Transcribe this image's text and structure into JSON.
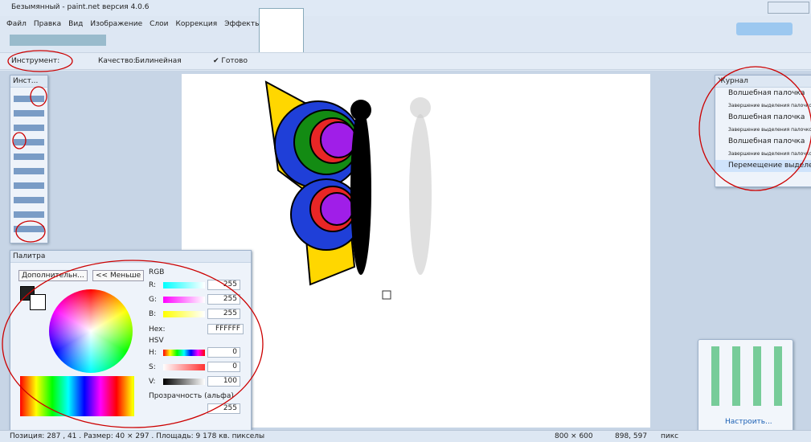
{
  "window": {
    "title": "Безымянный - paint.net версия 4.0.6"
  },
  "menu": [
    "Файл",
    "Правка",
    "Вид",
    "Изображение",
    "Слои",
    "Коррекция",
    "Эффекты"
  ],
  "toolbar": {
    "tool_label": "Инструмент:",
    "quality_label": "Качество:",
    "quality_value": "Билинейная",
    "finish": "Готово"
  },
  "tools": {
    "title": "Инст..."
  },
  "history": {
    "title": "Журнал",
    "items": [
      "Волшебная палочка",
      "Завершение выделения палочкой",
      "Волшебная палочка",
      "Завершение выделения палочкой",
      "Волшебная палочка",
      "Завершение выделения палочкой",
      "Перемещение выделенной област"
    ]
  },
  "palette": {
    "title": "Палитра",
    "mode": "Дополнительн...",
    "less": "<< Меньше",
    "rgb": "RGB",
    "r_label": "R:",
    "r": "255",
    "g_label": "G:",
    "g": "255",
    "b_label": "B:",
    "b": "255",
    "hex_label": "Hex:",
    "hex": "FFFFFF",
    "hsv": "HSV",
    "h_label": "H:",
    "h": "0",
    "s_label": "S:",
    "s": "0",
    "v_label": "V:",
    "v": "100",
    "alpha_label": "Прозрачность (альфа)",
    "alpha": "255"
  },
  "tray": {
    "customize": "Настроить..."
  },
  "status": {
    "info": "Позиция: 287 , 41 . Размер: 40 × 297 . Площадь: 9 178 кв. пикселы",
    "size": "800 × 600",
    "cursor": "898, 597",
    "units": "пикс"
  }
}
